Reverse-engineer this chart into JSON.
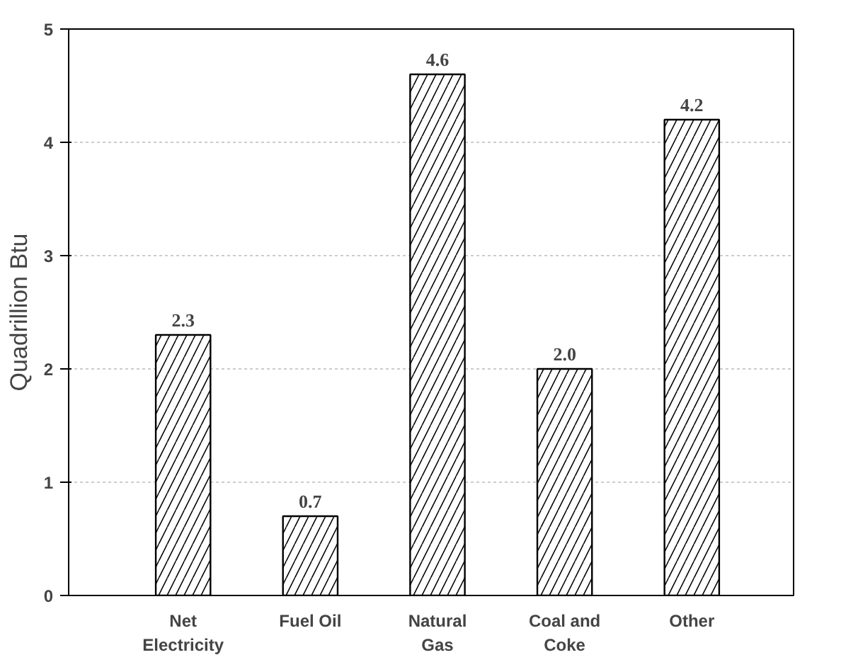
{
  "chart_data": {
    "type": "bar",
    "ylabel": "Quadrillion Btu",
    "categories": [
      "Net Electricity",
      "Fuel Oil",
      "Natural Gas",
      "Coal and Coke",
      "Other"
    ],
    "values": [
      2.3,
      0.7,
      4.6,
      2.0,
      4.2
    ],
    "value_labels": [
      "2.3",
      "0.7",
      "4.6",
      "2.0",
      "4.2"
    ],
    "color": "#000000",
    "ylim": [
      0,
      5
    ],
    "yticks": [
      0,
      1,
      2,
      3,
      4,
      5
    ],
    "grid": "y"
  }
}
